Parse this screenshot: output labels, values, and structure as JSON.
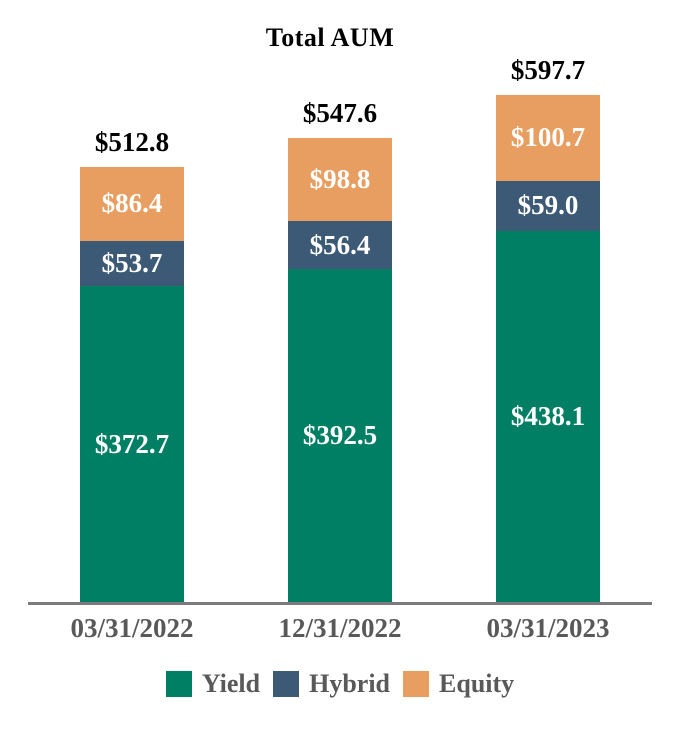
{
  "title": "Total AUM",
  "chart_data": {
    "type": "bar",
    "stacked": true,
    "title": "Total AUM",
    "categories": [
      "03/31/2022",
      "12/31/2022",
      "03/31/2023"
    ],
    "series": [
      {
        "name": "Yield",
        "color": "#007F64",
        "values": [
          372.7,
          392.5,
          438.1
        ],
        "value_labels": [
          "$372.7",
          "$392.5",
          "$438.1"
        ]
      },
      {
        "name": "Hybrid",
        "color": "#3C5976",
        "values": [
          53.7,
          56.4,
          59.0
        ],
        "value_labels": [
          "$53.7",
          "$56.4",
          "$59.0"
        ]
      },
      {
        "name": "Equity",
        "color": "#E89E60",
        "values": [
          86.4,
          98.8,
          100.7
        ],
        "value_labels": [
          "$86.4",
          "$98.8",
          "$100.7"
        ]
      }
    ],
    "totals": [
      512.8,
      547.6,
      597.7
    ],
    "total_labels": [
      "$512.8",
      "$547.6",
      "$597.7"
    ],
    "legend_position": "bottom",
    "grid": false,
    "y_axis_visible": false
  },
  "colors": {
    "background": "#FFFFFF",
    "axis_line": "#7B7B7B",
    "category_label": "#595959",
    "legend_label": "#595959",
    "total_label": "#000000",
    "segment_label": "#FFFFFF"
  }
}
